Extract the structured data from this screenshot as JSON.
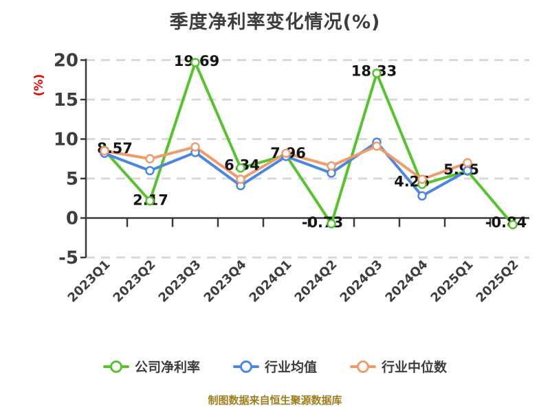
{
  "title": "季度净利率变化情况(%)",
  "y_axis_label": "(%)",
  "footer": "制图数据来自恒生聚源数据库",
  "colors": {
    "company": "#56c22d",
    "industry_avg": "#4b87e1",
    "industry_median": "#f19a6a",
    "grid": "#d9d9d9",
    "axis": "#3a3a3a",
    "tick_text": "#3d3d3d",
    "data_label": "#141414",
    "footer_text": "#9e7e1c",
    "y_axis_label_text": "#e60000",
    "background": "#ffffff"
  },
  "legend": [
    {
      "label": "公司净利率",
      "color": "#56c22d"
    },
    {
      "label": "行业均值",
      "color": "#4b87e1"
    },
    {
      "label": "行业中位数",
      "color": "#f19a6a"
    }
  ],
  "chart_data": {
    "type": "line",
    "title": "季度净利率变化情况(%)",
    "ylabel": "(%)",
    "ylim": [
      -5,
      20
    ],
    "yticks": [
      20,
      15,
      10,
      5,
      0,
      -5
    ],
    "grid": "horizontal dashed, zero line solid",
    "legend_position": "bottom",
    "categories": [
      "2023Q1",
      "2023Q2",
      "2023Q3",
      "2023Q4",
      "2024Q1",
      "2024Q2",
      "2024Q3",
      "2024Q4",
      "2025Q1",
      "2025Q2"
    ],
    "series": [
      {
        "name": "公司净利率",
        "color": "#56c22d",
        "labeled": true,
        "values": [
          8.57,
          2.17,
          19.69,
          6.34,
          7.96,
          -0.73,
          18.33,
          4.26,
          5.95,
          -0.84
        ]
      },
      {
        "name": "行业均值",
        "color": "#4b87e1",
        "labeled": false,
        "values": [
          8.2,
          6.0,
          8.3,
          4.1,
          7.8,
          5.7,
          9.6,
          2.8,
          6.0,
          null
        ]
      },
      {
        "name": "行业中位数",
        "color": "#f19a6a",
        "labeled": false,
        "values": [
          8.5,
          7.5,
          9.0,
          4.9,
          8.2,
          6.6,
          9.1,
          4.9,
          7.0,
          null
        ]
      }
    ]
  }
}
